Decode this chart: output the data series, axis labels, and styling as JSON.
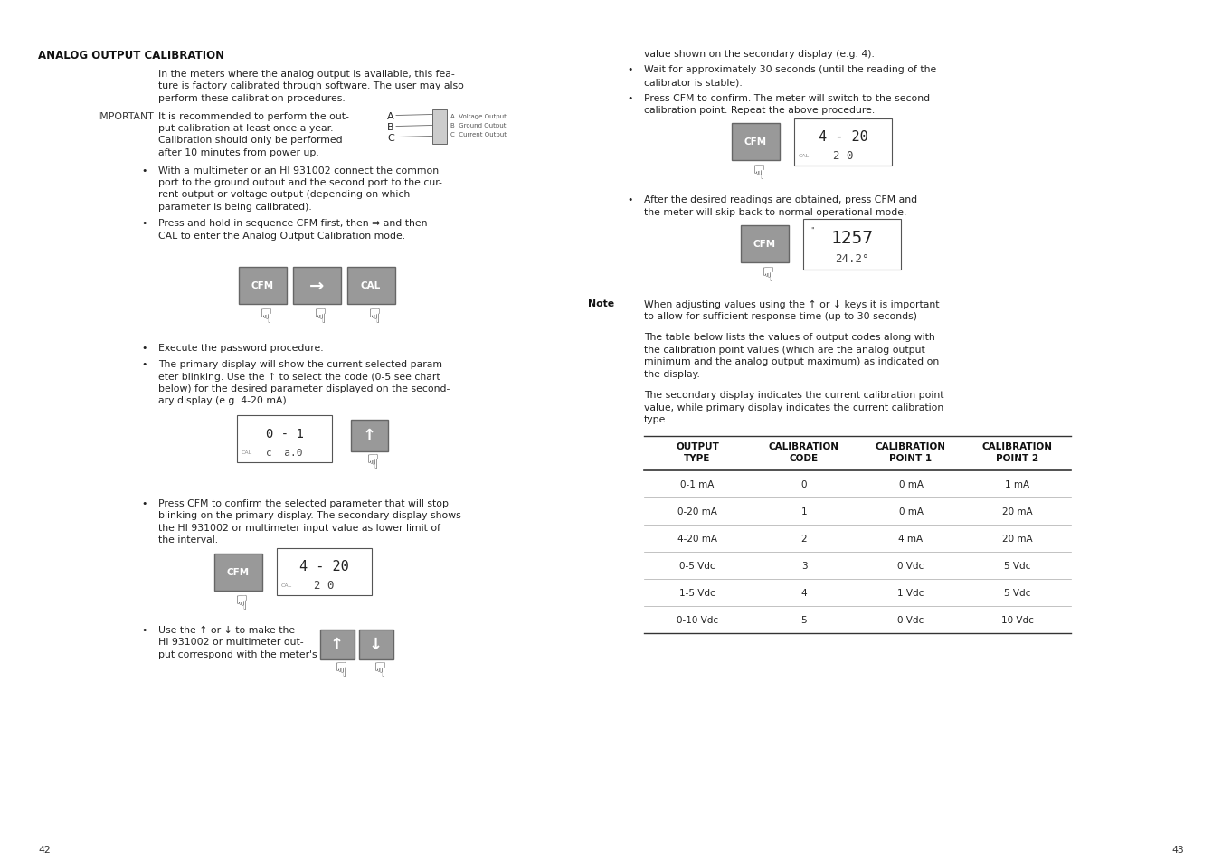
{
  "bg_color": "#ffffff",
  "page_width": 13.51,
  "page_height": 9.54,
  "left_page": {
    "page_num": "42",
    "title": "ANALOG OUTPUT CALIBRATION",
    "intro_lines": [
      "In the meters where the analog output is available, this fea-",
      "ture is factory calibrated through software. The user may also",
      "perform these calibration procedures."
    ],
    "important_label": "IMPORTANT",
    "important_lines": [
      "It is recommended to perform the out-",
      "put calibration at least once a year.",
      "Calibration should only be performed",
      "after 10 minutes from power up."
    ],
    "bullet1_lines": [
      "With a multimeter or an HI 931002 connect the common",
      "port to the ground output and the second port to the cur-",
      "rent output or voltage output (depending on which",
      "parameter is being calibrated)."
    ],
    "bullet2_lines": [
      "Press and hold in sequence CFM first, then ⇒ and then",
      "CAL to enter the Analog Output Calibration mode."
    ],
    "bullet3": "Execute the password procedure.",
    "bullet4_lines": [
      "The primary display will show the current selected param-",
      "eter blinking. Use the ↑ to select the code (0-5 see chart",
      "below) for the desired parameter displayed on the second-",
      "ary display (e.g. 4-20 mA)."
    ],
    "bullet5_lines": [
      "Press CFM to confirm the selected parameter that will stop",
      "blinking on the primary display. The secondary display shows",
      "the HI 931002 or multimeter input value as lower limit of",
      "the interval."
    ],
    "bullet6_lines": [
      "Use the ↑ or ↓ to make the",
      "HI 931002 or multimeter out-",
      "put correspond with the meter's"
    ]
  },
  "right_page": {
    "page_num": "43",
    "bullet_cont": "value shown on the secondary display (e.g. 4).",
    "bullet_wait_lines": [
      "Wait for approximately 30 seconds (until the reading of the",
      "calibrator is stable)."
    ],
    "bullet_press_lines": [
      "Press CFM to confirm. The meter will switch to the second",
      "calibration point. Repeat the above procedure."
    ],
    "bullet_after_lines": [
      "After the desired readings are obtained, press CFM and",
      "the meter will skip back to normal operational mode."
    ],
    "note_label": "Note",
    "note_lines": [
      "When adjusting values using the ↑ or ↓ keys it is important",
      "to allow for sufficient response time (up to 30 seconds)"
    ],
    "para1_lines": [
      "The table below lists the values of output codes along with",
      "the calibration point values (which are the analog output",
      "minimum and the analog output maximum) as indicated on",
      "the display."
    ],
    "para2_lines": [
      "The secondary display indicates the current calibration point",
      "value, while primary display indicates the current calibration",
      "type."
    ],
    "table_headers": [
      "OUTPUT\nTYPE",
      "CALIBRATION\nCODE",
      "CALIBRATION\nPOINT 1",
      "CALIBRATION\nPOINT 2"
    ],
    "table_rows": [
      [
        "0-1 mA",
        "0",
        "0 mA",
        "1 mA"
      ],
      [
        "0-20 mA",
        "1",
        "0 mA",
        "20 mA"
      ],
      [
        "4-20 mA",
        "2",
        "4 mA",
        "20 mA"
      ],
      [
        "0-5 Vdc",
        "3",
        "0 Vdc",
        "5 Vdc"
      ],
      [
        "1-5 Vdc",
        "4",
        "1 Vdc",
        "5 Vdc"
      ],
      [
        "0-10 Vdc",
        "5",
        "0 Vdc",
        "10 Vdc"
      ]
    ]
  }
}
